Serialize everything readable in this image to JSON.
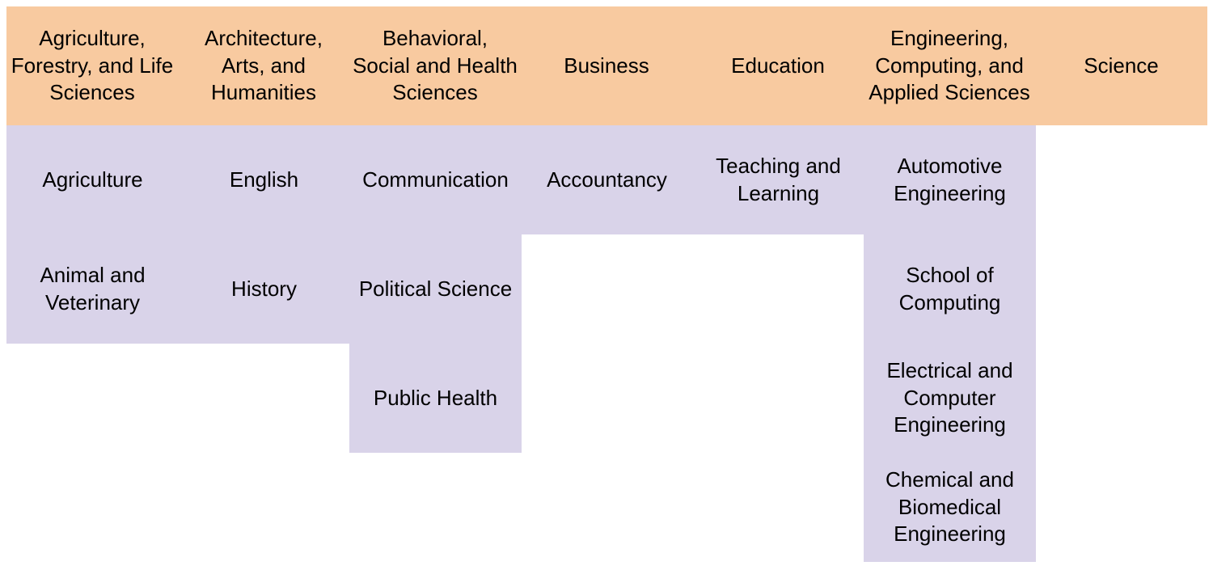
{
  "colors": {
    "header_background": "#f8caa0",
    "department_background": "#d9d3e9",
    "page_background": "#ffffff",
    "text": "#000000"
  },
  "colleges": [
    {
      "name": "Agriculture, Forestry, and Life Sciences",
      "departments": [
        "Agriculture",
        "Animal and Veterinary"
      ]
    },
    {
      "name": "Architecture, Arts, and Humanities",
      "departments": [
        "English",
        "History"
      ]
    },
    {
      "name": "Behavioral, Social and Health Sciences",
      "departments": [
        "Communication",
        "Political Science",
        "Public Health"
      ]
    },
    {
      "name": "Business",
      "departments": [
        "Accountancy"
      ]
    },
    {
      "name": "Education",
      "departments": [
        "Teaching and Learning"
      ]
    },
    {
      "name": "Engineering, Computing, and Applied Sciences",
      "departments": [
        "Automotive Engineering",
        "School of Computing",
        "Electrical and Computer Engineering",
        "Chemical and Biomedical Engineering"
      ]
    },
    {
      "name": "Science",
      "departments": []
    }
  ]
}
